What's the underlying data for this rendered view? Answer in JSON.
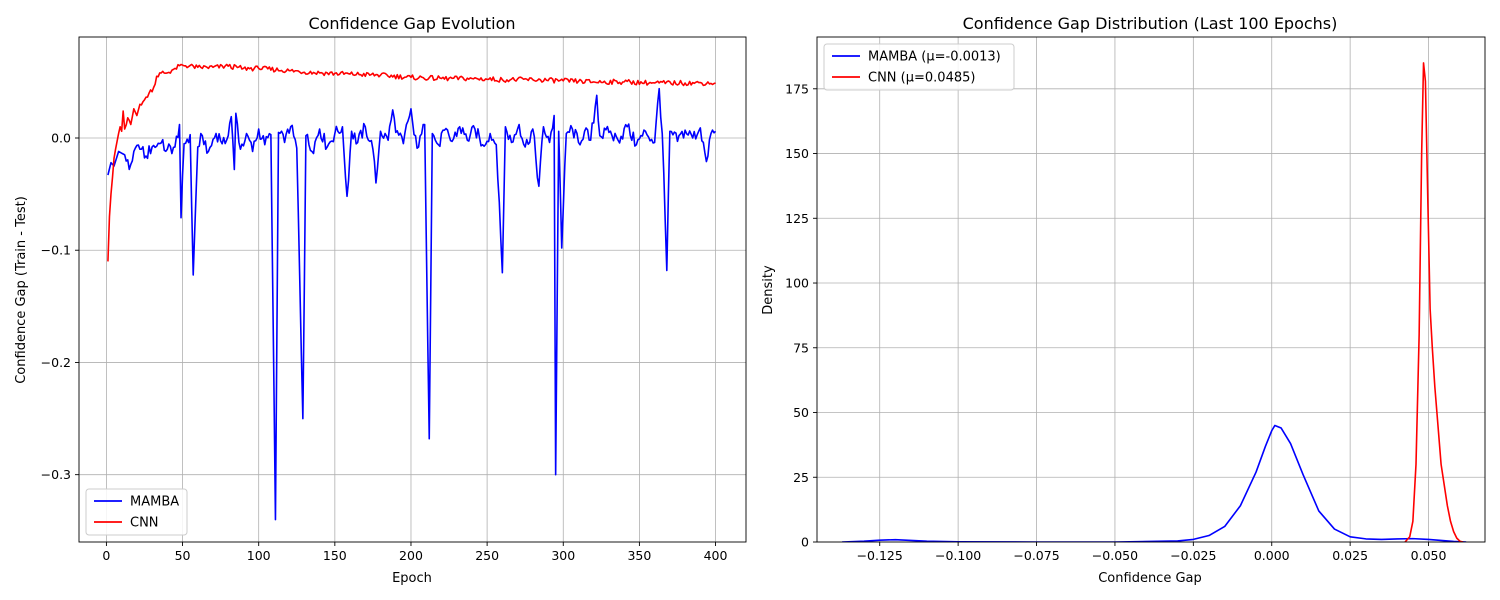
{
  "chart_data": [
    {
      "type": "line",
      "title": "Confidence Gap Evolution",
      "xlabel": "Epoch",
      "ylabel": "Confidence Gap (Train - Test)",
      "xlim": [
        -18,
        420
      ],
      "ylim": [
        -0.36,
        0.09
      ],
      "xticks": [
        0,
        50,
        100,
        150,
        200,
        250,
        300,
        350,
        400
      ],
      "yticks": [
        -0.3,
        -0.2,
        -0.1,
        0.0
      ],
      "xtick_labels": [
        "0",
        "50",
        "100",
        "150",
        "200",
        "250",
        "300",
        "350",
        "400"
      ],
      "ytick_labels": [
        "−0.3",
        "−0.2",
        "−0.1",
        "0.0"
      ],
      "grid": true,
      "legend_position": "lower-left",
      "series": [
        {
          "name": "MAMBA",
          "color": "#0000ff",
          "keypoints": [
            [
              1,
              -0.033
            ],
            [
              3,
              -0.022
            ],
            [
              5,
              -0.025
            ],
            [
              8,
              -0.012
            ],
            [
              12,
              -0.015
            ],
            [
              15,
              -0.028
            ],
            [
              18,
              -0.012
            ],
            [
              22,
              -0.01
            ],
            [
              26,
              -0.016
            ],
            [
              30,
              -0.008
            ],
            [
              35,
              -0.005
            ],
            [
              40,
              -0.01
            ],
            [
              45,
              -0.008
            ],
            [
              48,
              0.012
            ],
            [
              49,
              -0.071
            ],
            [
              51,
              -0.005
            ],
            [
              55,
              0.003
            ],
            [
              57,
              -0.122
            ],
            [
              60,
              -0.008
            ],
            [
              63,
              0.002
            ],
            [
              67,
              -0.012
            ],
            [
              72,
              0.004
            ],
            [
              78,
              -0.005
            ],
            [
              82,
              0.019
            ],
            [
              84,
              -0.028
            ],
            [
              85,
              0.022
            ],
            [
              88,
              -0.01
            ],
            [
              92,
              0.004
            ],
            [
              96,
              -0.012
            ],
            [
              100,
              0.008
            ],
            [
              104,
              -0.006
            ],
            [
              108,
              0.003
            ],
            [
              111,
              -0.34
            ],
            [
              113,
              0.005
            ],
            [
              117,
              -0.004
            ],
            [
              121,
              0.01
            ],
            [
              125,
              -0.009
            ],
            [
              129,
              -0.25
            ],
            [
              131,
              0.002
            ],
            [
              135,
              -0.012
            ],
            [
              140,
              0.008
            ],
            [
              145,
              -0.008
            ],
            [
              150,
              0.004
            ],
            [
              155,
              0.01
            ],
            [
              158,
              -0.052
            ],
            [
              161,
              0.006
            ],
            [
              165,
              -0.004
            ],
            [
              170,
              0.01
            ],
            [
              175,
              -0.01
            ],
            [
              177,
              -0.04
            ],
            [
              180,
              0.006
            ],
            [
              185,
              -0.002
            ],
            [
              188,
              0.025
            ],
            [
              190,
              0.005
            ],
            [
              195,
              -0.005
            ],
            [
              198,
              0.015
            ],
            [
              200,
              0.026
            ],
            [
              202,
              0.003
            ],
            [
              205,
              -0.008
            ],
            [
              209,
              0.012
            ],
            [
              212,
              -0.268
            ],
            [
              214,
              0.004
            ],
            [
              218,
              -0.006
            ],
            [
              222,
              0.007
            ],
            [
              227,
              -0.003
            ],
            [
              232,
              0.01
            ],
            [
              237,
              -0.002
            ],
            [
              242,
              0.008
            ],
            [
              247,
              -0.006
            ],
            [
              252,
              0.004
            ],
            [
              256,
              -0.006
            ],
            [
              260,
              -0.12
            ],
            [
              262,
              0.01
            ],
            [
              266,
              -0.004
            ],
            [
              271,
              0.012
            ],
            [
              275,
              -0.008
            ],
            [
              280,
              0.008
            ],
            [
              284,
              -0.043
            ],
            [
              287,
              0.01
            ],
            [
              291,
              -0.004
            ],
            [
              294,
              0.02
            ],
            [
              295,
              -0.3
            ],
            [
              297,
              0.006
            ],
            [
              299,
              -0.098
            ],
            [
              302,
              0.004
            ],
            [
              306,
              0.008
            ],
            [
              310,
              -0.004
            ],
            [
              314,
              0.006
            ],
            [
              318,
              -0.002
            ],
            [
              322,
              0.038
            ],
            [
              324,
              0.002
            ],
            [
              330,
              0.005
            ],
            [
              336,
              -0.002
            ],
            [
              342,
              0.01
            ],
            [
              348,
              -0.006
            ],
            [
              354,
              0.006
            ],
            [
              360,
              -0.004
            ],
            [
              363,
              0.044
            ],
            [
              365,
              0.004
            ],
            [
              368,
              -0.118
            ],
            [
              370,
              0.006
            ],
            [
              375,
              -0.003
            ],
            [
              380,
              0.007
            ],
            [
              385,
              0.0
            ],
            [
              390,
              0.009
            ],
            [
              394,
              -0.021
            ],
            [
              397,
              0.004
            ],
            [
              400,
              0.006
            ]
          ]
        },
        {
          "name": "CNN",
          "color": "#ff0000",
          "keypoints": [
            [
              1,
              -0.11
            ],
            [
              2,
              -0.07
            ],
            [
              3,
              -0.05
            ],
            [
              4,
              -0.035
            ],
            [
              5,
              -0.018
            ],
            [
              6,
              -0.01
            ],
            [
              7,
              -0.003
            ],
            [
              8,
              0.004
            ],
            [
              9,
              0.01
            ],
            [
              10,
              0.006
            ],
            [
              11,
              0.024
            ],
            [
              12,
              0.008
            ],
            [
              14,
              0.018
            ],
            [
              16,
              0.012
            ],
            [
              18,
              0.026
            ],
            [
              20,
              0.02
            ],
            [
              22,
              0.03
            ],
            [
              25,
              0.034
            ],
            [
              28,
              0.04
            ],
            [
              31,
              0.045
            ],
            [
              33,
              0.055
            ],
            [
              36,
              0.058
            ],
            [
              40,
              0.058
            ],
            [
              45,
              0.062
            ],
            [
              50,
              0.065
            ],
            [
              60,
              0.063
            ],
            [
              70,
              0.063
            ],
            [
              80,
              0.064
            ],
            [
              90,
              0.062
            ],
            [
              100,
              0.062
            ],
            [
              120,
              0.06
            ],
            [
              140,
              0.058
            ],
            [
              160,
              0.057
            ],
            [
              180,
              0.056
            ],
            [
              200,
              0.054
            ],
            [
              220,
              0.053
            ],
            [
              240,
              0.053
            ],
            [
              260,
              0.052
            ],
            [
              280,
              0.052
            ],
            [
              300,
              0.051
            ],
            [
              320,
              0.05
            ],
            [
              340,
              0.05
            ],
            [
              360,
              0.049
            ],
            [
              380,
              0.049
            ],
            [
              400,
              0.049
            ]
          ]
        }
      ]
    },
    {
      "type": "line",
      "title": "Confidence Gap Distribution (Last 100 Epochs)",
      "xlabel": "Confidence Gap",
      "ylabel": "Density",
      "xlim": [
        -0.145,
        0.068
      ],
      "ylim": [
        0,
        195
      ],
      "xticks": [
        -0.125,
        -0.1,
        -0.075,
        -0.05,
        -0.025,
        0.0,
        0.025,
        0.05
      ],
      "yticks": [
        0,
        25,
        50,
        75,
        100,
        125,
        150,
        175
      ],
      "xtick_labels": [
        "−0.125",
        "−0.100",
        "−0.075",
        "−0.050",
        "−0.025",
        "0.000",
        "0.025",
        "0.050"
      ],
      "ytick_labels": [
        "0",
        "25",
        "50",
        "75",
        "100",
        "125",
        "150",
        "175"
      ],
      "grid": true,
      "legend_position": "upper-left",
      "series": [
        {
          "name": "MAMBA (μ=-0.0013)",
          "color": "#0000ff",
          "points": [
            [
              -0.137,
              0.0
            ],
            [
              -0.13,
              0.3
            ],
            [
              -0.125,
              0.7
            ],
            [
              -0.12,
              0.9
            ],
            [
              -0.115,
              0.6
            ],
            [
              -0.11,
              0.3
            ],
            [
              -0.1,
              0.1
            ],
            [
              -0.075,
              0.0
            ],
            [
              -0.05,
              0.0
            ],
            [
              -0.03,
              0.4
            ],
            [
              -0.025,
              1.0
            ],
            [
              -0.02,
              2.5
            ],
            [
              -0.015,
              6.0
            ],
            [
              -0.01,
              14.0
            ],
            [
              -0.005,
              27.0
            ],
            [
              -0.002,
              37.0
            ],
            [
              0.0,
              43.0
            ],
            [
              0.001,
              45.0
            ],
            [
              0.003,
              44.0
            ],
            [
              0.006,
              38.0
            ],
            [
              0.01,
              26.0
            ],
            [
              0.015,
              12.0
            ],
            [
              0.02,
              5.0
            ],
            [
              0.025,
              2.0
            ],
            [
              0.03,
              1.2
            ],
            [
              0.035,
              1.0
            ],
            [
              0.04,
              1.2
            ],
            [
              0.045,
              1.3
            ],
            [
              0.05,
              1.0
            ],
            [
              0.055,
              0.5
            ],
            [
              0.058,
              0.2
            ],
            [
              0.062,
              0.0
            ]
          ]
        },
        {
          "name": "CNN (μ=0.0485)",
          "color": "#ff0000",
          "points": [
            [
              0.0425,
              0.0
            ],
            [
              0.044,
              2.0
            ],
            [
              0.045,
              8.0
            ],
            [
              0.046,
              30.0
            ],
            [
              0.047,
              80.0
            ],
            [
              0.0478,
              150.0
            ],
            [
              0.0484,
              185.0
            ],
            [
              0.049,
              178.0
            ],
            [
              0.0498,
              130.0
            ],
            [
              0.0505,
              90.0
            ],
            [
              0.0512,
              75.0
            ],
            [
              0.052,
              60.0
            ],
            [
              0.053,
              45.0
            ],
            [
              0.054,
              30.0
            ],
            [
              0.055,
              22.0
            ],
            [
              0.056,
              14.0
            ],
            [
              0.057,
              8.0
            ],
            [
              0.058,
              4.0
            ],
            [
              0.059,
              1.5
            ],
            [
              0.06,
              0.3
            ],
            [
              0.061,
              0.0
            ]
          ]
        }
      ]
    }
  ]
}
